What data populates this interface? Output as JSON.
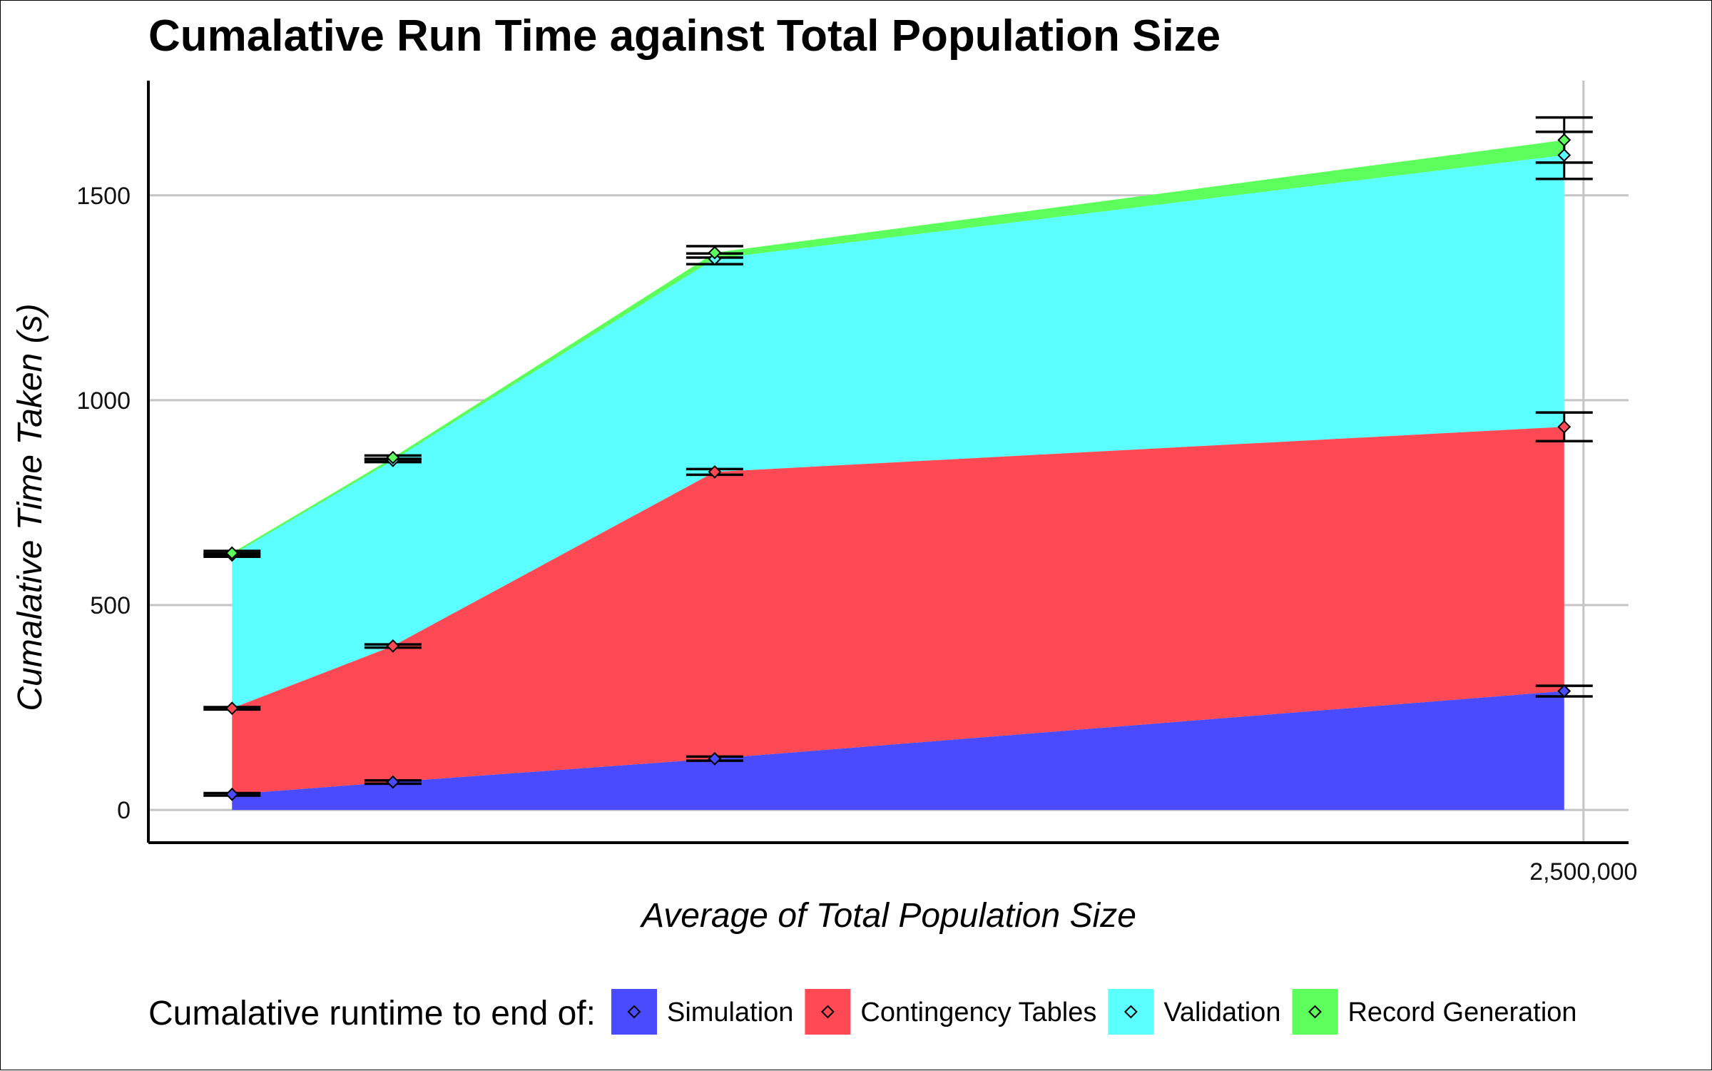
{
  "chart_data": {
    "type": "area",
    "title": "Cumalative Run Time against Total Population Size",
    "xlabel": "Average of Total Population Size",
    "ylabel": "Cumalative Time Taken (s)",
    "x": [
      400000,
      650000,
      1150000,
      2470000
    ],
    "xlim": [
      270000,
      2570000
    ],
    "xticks": [
      2500000
    ],
    "xtick_labels": [
      "2,500,000"
    ],
    "ylim": [
      -80,
      1780
    ],
    "yticks": [
      0,
      500,
      1000,
      1500
    ],
    "ytick_labels": [
      "0",
      "500",
      "1000",
      "1500"
    ],
    "grid": true,
    "legend": {
      "title": "Cumalative runtime to end of:",
      "position": "bottom"
    },
    "series": [
      {
        "name": "Simulation",
        "color": "#4a4aff",
        "values": [
          38,
          68,
          125,
          290
        ],
        "error": [
          [
            35,
            41
          ],
          [
            64,
            72
          ],
          [
            120,
            130
          ],
          [
            277,
            303
          ]
        ]
      },
      {
        "name": "Contingency Tables",
        "color": "#ff4a55",
        "values": [
          248,
          400,
          825,
          935
        ],
        "error": [
          [
            245,
            251
          ],
          [
            396,
            404
          ],
          [
            818,
            832
          ],
          [
            900,
            970
          ]
        ]
      },
      {
        "name": "Validation",
        "color": "#5cffff",
        "values": [
          622,
          853,
          1345,
          1598
        ],
        "error": [
          [
            618,
            626
          ],
          [
            849,
            857
          ],
          [
            1332,
            1358
          ],
          [
            1540,
            1655
          ]
        ]
      },
      {
        "name": "Record Generation",
        "color": "#5cff5c",
        "values": [
          627,
          860,
          1360,
          1635
        ],
        "error": [
          [
            622,
            632
          ],
          [
            855,
            865
          ],
          [
            1348,
            1376
          ],
          [
            1580,
            1690
          ]
        ]
      }
    ]
  }
}
